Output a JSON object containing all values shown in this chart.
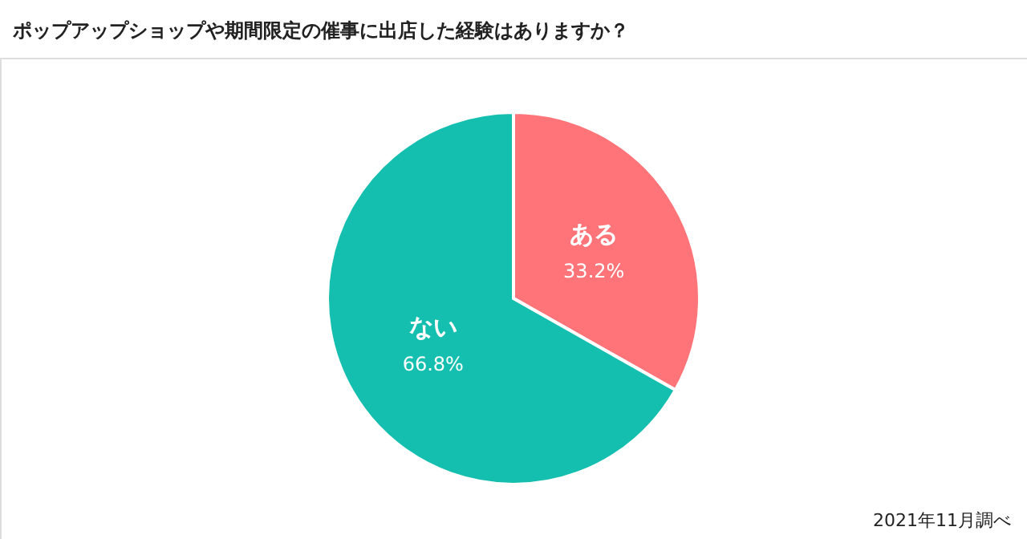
{
  "chart_data": {
    "type": "pie",
    "title": "ポップアップショップや期間限定の催事に出店した経験はありますか？",
    "categories": [
      "ある",
      "ない"
    ],
    "values": [
      33.2,
      66.8
    ],
    "value_labels": [
      "33.2%",
      "66.8%"
    ],
    "colors": [
      "#ff7479",
      "#14bfb0"
    ],
    "annotations": [
      "2021年11月調べ"
    ]
  }
}
